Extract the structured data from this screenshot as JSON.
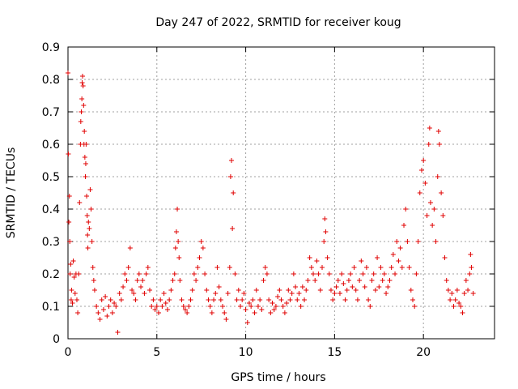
{
  "chart_data": {
    "type": "scatter",
    "title": "Day 247 of 2022, SRMTID for receiver koug",
    "xlabel": "GPS time / hours",
    "ylabel": "SRMTID / TECUs",
    "xlim": [
      0,
      24
    ],
    "ylim": [
      0,
      0.9
    ],
    "x_ticks": [
      "0",
      "5",
      "10",
      "15",
      "20"
    ],
    "y_ticks": [
      "0",
      "0.1",
      "0.2",
      "0.3",
      "0.4",
      "0.5",
      "0.6",
      "0.7",
      "0.8",
      "0.9"
    ],
    "grid": true,
    "marker": "+",
    "color": "#e00000",
    "series": [
      {
        "name": "SRMTID",
        "points": [
          [
            0.0,
            0.82
          ],
          [
            0.02,
            0.57
          ],
          [
            0.05,
            0.36
          ],
          [
            0.08,
            0.44
          ],
          [
            0.1,
            0.3
          ],
          [
            0.12,
            0.2
          ],
          [
            0.15,
            0.23
          ],
          [
            0.18,
            0.12
          ],
          [
            0.2,
            0.15
          ],
          [
            0.25,
            0.11
          ],
          [
            0.3,
            0.24
          ],
          [
            0.35,
            0.19
          ],
          [
            0.4,
            0.14
          ],
          [
            0.45,
            0.2
          ],
          [
            0.5,
            0.12
          ],
          [
            0.55,
            0.08
          ],
          [
            0.6,
            0.2
          ],
          [
            0.65,
            0.42
          ],
          [
            0.7,
            0.6
          ],
          [
            0.72,
            0.67
          ],
          [
            0.75,
            0.7
          ],
          [
            0.78,
            0.74
          ],
          [
            0.8,
            0.79
          ],
          [
            0.82,
            0.81
          ],
          [
            0.85,
            0.78
          ],
          [
            0.88,
            0.72
          ],
          [
            0.9,
            0.6
          ],
          [
            0.92,
            0.64
          ],
          [
            0.95,
            0.56
          ],
          [
            0.98,
            0.5
          ],
          [
            1.0,
            0.54
          ],
          [
            1.02,
            0.6
          ],
          [
            1.05,
            0.44
          ],
          [
            1.08,
            0.38
          ],
          [
            1.1,
            0.32
          ],
          [
            1.12,
            0.28
          ],
          [
            1.15,
            0.36
          ],
          [
            1.2,
            0.34
          ],
          [
            1.25,
            0.46
          ],
          [
            1.3,
            0.4
          ],
          [
            1.35,
            0.3
          ],
          [
            1.4,
            0.22
          ],
          [
            1.45,
            0.18
          ],
          [
            1.5,
            0.15
          ],
          [
            1.6,
            0.1
          ],
          [
            1.7,
            0.08
          ],
          [
            1.8,
            0.06
          ],
          [
            1.9,
            0.12
          ],
          [
            2.0,
            0.09
          ],
          [
            2.1,
            0.13
          ],
          [
            2.2,
            0.07
          ],
          [
            2.3,
            0.1
          ],
          [
            2.4,
            0.12
          ],
          [
            2.5,
            0.08
          ],
          [
            2.6,
            0.11
          ],
          [
            2.7,
            0.1
          ],
          [
            2.8,
            0.02
          ],
          [
            2.9,
            0.14
          ],
          [
            3.0,
            0.12
          ],
          [
            3.1,
            0.16
          ],
          [
            3.2,
            0.2
          ],
          [
            3.3,
            0.18
          ],
          [
            3.4,
            0.22
          ],
          [
            3.5,
            0.28
          ],
          [
            3.6,
            0.15
          ],
          [
            3.7,
            0.14
          ],
          [
            3.8,
            0.12
          ],
          [
            3.9,
            0.18
          ],
          [
            4.0,
            0.2
          ],
          [
            4.1,
            0.16
          ],
          [
            4.2,
            0.18
          ],
          [
            4.3,
            0.14
          ],
          [
            4.4,
            0.2
          ],
          [
            4.5,
            0.22
          ],
          [
            4.6,
            0.15
          ],
          [
            4.7,
            0.1
          ],
          [
            4.8,
            0.12
          ],
          [
            4.9,
            0.09
          ],
          [
            5.0,
            0.1
          ],
          [
            5.1,
            0.08
          ],
          [
            5.2,
            0.12
          ],
          [
            5.3,
            0.1
          ],
          [
            5.4,
            0.14
          ],
          [
            5.5,
            0.11
          ],
          [
            5.6,
            0.09
          ],
          [
            5.7,
            0.12
          ],
          [
            5.8,
            0.15
          ],
          [
            5.9,
            0.18
          ],
          [
            6.0,
            0.2
          ],
          [
            6.05,
            0.28
          ],
          [
            6.1,
            0.33
          ],
          [
            6.15,
            0.4
          ],
          [
            6.2,
            0.3
          ],
          [
            6.25,
            0.25
          ],
          [
            6.3,
            0.18
          ],
          [
            6.4,
            0.12
          ],
          [
            6.5,
            0.1
          ],
          [
            6.6,
            0.09
          ],
          [
            6.7,
            0.08
          ],
          [
            6.8,
            0.1
          ],
          [
            6.9,
            0.12
          ],
          [
            7.0,
            0.15
          ],
          [
            7.1,
            0.2
          ],
          [
            7.2,
            0.18
          ],
          [
            7.3,
            0.22
          ],
          [
            7.4,
            0.25
          ],
          [
            7.5,
            0.3
          ],
          [
            7.6,
            0.28
          ],
          [
            7.7,
            0.2
          ],
          [
            7.8,
            0.15
          ],
          [
            7.9,
            0.12
          ],
          [
            8.0,
            0.1
          ],
          [
            8.1,
            0.08
          ],
          [
            8.2,
            0.12
          ],
          [
            8.3,
            0.14
          ],
          [
            8.4,
            0.22
          ],
          [
            8.5,
            0.16
          ],
          [
            8.6,
            0.12
          ],
          [
            8.7,
            0.1
          ],
          [
            8.8,
            0.08
          ],
          [
            8.9,
            0.06
          ],
          [
            9.0,
            0.14
          ],
          [
            9.1,
            0.22
          ],
          [
            9.15,
            0.5
          ],
          [
            9.2,
            0.55
          ],
          [
            9.25,
            0.34
          ],
          [
            9.3,
            0.45
          ],
          [
            9.4,
            0.2
          ],
          [
            9.5,
            0.12
          ],
          [
            9.6,
            0.15
          ],
          [
            9.7,
            0.1
          ],
          [
            9.8,
            0.12
          ],
          [
            9.9,
            0.14
          ],
          [
            10.0,
            0.09
          ],
          [
            10.1,
            0.05
          ],
          [
            10.2,
            0.11
          ],
          [
            10.3,
            0.1
          ],
          [
            10.4,
            0.12
          ],
          [
            10.5,
            0.08
          ],
          [
            10.6,
            0.15
          ],
          [
            10.7,
            0.1
          ],
          [
            10.8,
            0.12
          ],
          [
            10.9,
            0.09
          ],
          [
            11.0,
            0.18
          ],
          [
            11.1,
            0.22
          ],
          [
            11.2,
            0.2
          ],
          [
            11.3,
            0.12
          ],
          [
            11.4,
            0.08
          ],
          [
            11.5,
            0.11
          ],
          [
            11.6,
            0.09
          ],
          [
            11.7,
            0.1
          ],
          [
            11.8,
            0.13
          ],
          [
            11.9,
            0.15
          ],
          [
            12.0,
            0.12
          ],
          [
            12.1,
            0.1
          ],
          [
            12.2,
            0.08
          ],
          [
            12.3,
            0.11
          ],
          [
            12.4,
            0.15
          ],
          [
            12.5,
            0.12
          ],
          [
            12.6,
            0.14
          ],
          [
            12.7,
            0.2
          ],
          [
            12.8,
            0.16
          ],
          [
            12.9,
            0.12
          ],
          [
            13.0,
            0.14
          ],
          [
            13.1,
            0.1
          ],
          [
            13.2,
            0.16
          ],
          [
            13.3,
            0.12
          ],
          [
            13.4,
            0.15
          ],
          [
            13.5,
            0.18
          ],
          [
            13.6,
            0.25
          ],
          [
            13.7,
            0.22
          ],
          [
            13.8,
            0.2
          ],
          [
            13.9,
            0.18
          ],
          [
            14.0,
            0.24
          ],
          [
            14.1,
            0.2
          ],
          [
            14.2,
            0.15
          ],
          [
            14.3,
            0.22
          ],
          [
            14.4,
            0.3
          ],
          [
            14.45,
            0.37
          ],
          [
            14.5,
            0.33
          ],
          [
            14.6,
            0.25
          ],
          [
            14.7,
            0.2
          ],
          [
            14.8,
            0.15
          ],
          [
            14.9,
            0.12
          ],
          [
            15.0,
            0.14
          ],
          [
            15.1,
            0.16
          ],
          [
            15.2,
            0.18
          ],
          [
            15.3,
            0.14
          ],
          [
            15.4,
            0.2
          ],
          [
            15.5,
            0.17
          ],
          [
            15.6,
            0.12
          ],
          [
            15.7,
            0.15
          ],
          [
            15.8,
            0.18
          ],
          [
            15.9,
            0.2
          ],
          [
            16.0,
            0.16
          ],
          [
            16.1,
            0.22
          ],
          [
            16.2,
            0.15
          ],
          [
            16.3,
            0.12
          ],
          [
            16.4,
            0.18
          ],
          [
            16.5,
            0.24
          ],
          [
            16.6,
            0.2
          ],
          [
            16.7,
            0.16
          ],
          [
            16.8,
            0.22
          ],
          [
            16.9,
            0.12
          ],
          [
            17.0,
            0.1
          ],
          [
            17.1,
            0.18
          ],
          [
            17.2,
            0.2
          ],
          [
            17.3,
            0.15
          ],
          [
            17.4,
            0.25
          ],
          [
            17.5,
            0.16
          ],
          [
            17.6,
            0.22
          ],
          [
            17.7,
            0.18
          ],
          [
            17.8,
            0.2
          ],
          [
            17.9,
            0.14
          ],
          [
            18.0,
            0.16
          ],
          [
            18.1,
            0.18
          ],
          [
            18.2,
            0.22
          ],
          [
            18.3,
            0.26
          ],
          [
            18.4,
            0.2
          ],
          [
            18.5,
            0.3
          ],
          [
            18.6,
            0.24
          ],
          [
            18.7,
            0.28
          ],
          [
            18.8,
            0.22
          ],
          [
            18.9,
            0.35
          ],
          [
            19.0,
            0.4
          ],
          [
            19.1,
            0.3
          ],
          [
            19.2,
            0.22
          ],
          [
            19.3,
            0.15
          ],
          [
            19.4,
            0.12
          ],
          [
            19.5,
            0.1
          ],
          [
            19.6,
            0.2
          ],
          [
            19.7,
            0.3
          ],
          [
            19.8,
            0.45
          ],
          [
            19.9,
            0.52
          ],
          [
            20.0,
            0.55
          ],
          [
            20.1,
            0.48
          ],
          [
            20.2,
            0.38
          ],
          [
            20.3,
            0.6
          ],
          [
            20.35,
            0.65
          ],
          [
            20.4,
            0.42
          ],
          [
            20.5,
            0.35
          ],
          [
            20.6,
            0.4
          ],
          [
            20.7,
            0.3
          ],
          [
            20.8,
            0.5
          ],
          [
            20.85,
            0.64
          ],
          [
            20.9,
            0.6
          ],
          [
            21.0,
            0.45
          ],
          [
            21.1,
            0.38
          ],
          [
            21.2,
            0.25
          ],
          [
            21.3,
            0.18
          ],
          [
            21.4,
            0.15
          ],
          [
            21.5,
            0.12
          ],
          [
            21.6,
            0.14
          ],
          [
            21.7,
            0.1
          ],
          [
            21.8,
            0.12
          ],
          [
            21.9,
            0.15
          ],
          [
            22.0,
            0.11
          ],
          [
            22.1,
            0.1
          ],
          [
            22.2,
            0.08
          ],
          [
            22.3,
            0.14
          ],
          [
            22.4,
            0.18
          ],
          [
            22.5,
            0.15
          ],
          [
            22.6,
            0.2
          ],
          [
            22.65,
            0.26
          ],
          [
            22.7,
            0.22
          ],
          [
            22.8,
            0.14
          ]
        ]
      }
    ]
  }
}
